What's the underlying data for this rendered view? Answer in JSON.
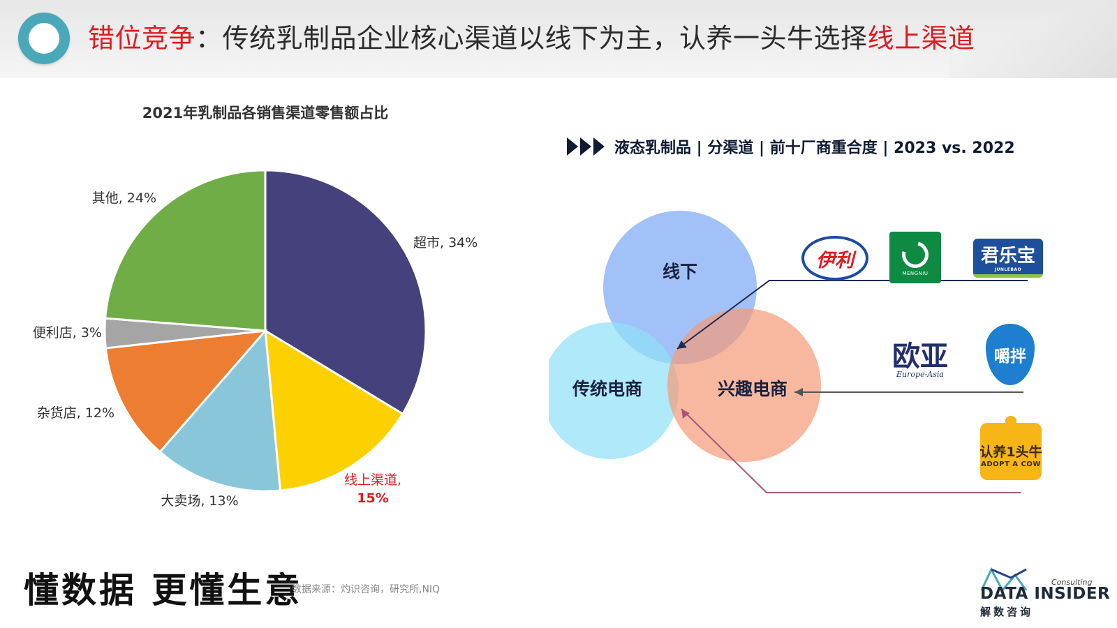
{
  "header": {
    "title_prefix": "错位竞争",
    "title_middle": "：传统乳制品企业核心渠道以线下为主，认养一头牛选择",
    "title_suffix": "线上渠道",
    "accent_color": "#e01a22",
    "ring_color": "#4aa9b8"
  },
  "chart_data": [
    {
      "type": "pie",
      "title": "2021年乳制品各销售渠道零售额占比",
      "slices": [
        {
          "label": "超市",
          "value": 34,
          "color": "#45417c",
          "display": "超市, 34%"
        },
        {
          "label": "线上渠道",
          "value": 15,
          "color": "#fdd000",
          "display": "线上渠道,",
          "display2": "15%",
          "highlight": true
        },
        {
          "label": "大卖场",
          "value": 13,
          "color": "#8ac6da",
          "display": "大卖场, 13%"
        },
        {
          "label": "杂货店",
          "value": 12,
          "color": "#ed7d31",
          "display": "杂货店, 12%"
        },
        {
          "label": "便利店",
          "value": 3,
          "color": "#a5a5a5",
          "display": "便利店, 3%"
        },
        {
          "label": "其他",
          "value": 24,
          "color": "#70ad47",
          "display": "其他, 24%"
        }
      ],
      "highlight_color": "#e01a22"
    }
  ],
  "venn": {
    "title": "液态乳制品 | 分渠道 | 前十厂商重合度 | 2023 vs. 2022",
    "circles": [
      {
        "label": "线下",
        "color": "#7aa7f5"
      },
      {
        "label": "传统电商",
        "color": "#8fe0f7"
      },
      {
        "label": "兴趣电商",
        "color": "#f59a78"
      }
    ],
    "brands": {
      "yili": "伊利",
      "mengniu": "MENGNIU",
      "junlebao": "君乐宝",
      "junlebao_sub": "JUNLEBAO",
      "ouya": "欧亚",
      "ouya_sub": "Europe-Asia",
      "jiaoban": "嚼拌",
      "adopt_cn": "认养1头牛",
      "adopt_en": "ADOPT A COW"
    }
  },
  "footer": {
    "slogan": "懂数据 更懂生意",
    "source": "数据来源：灼识咨询，研究所,NIQ",
    "company_en": "DATA INSIDER",
    "company_cn": "解数咨询",
    "consulting": "Consulting"
  }
}
